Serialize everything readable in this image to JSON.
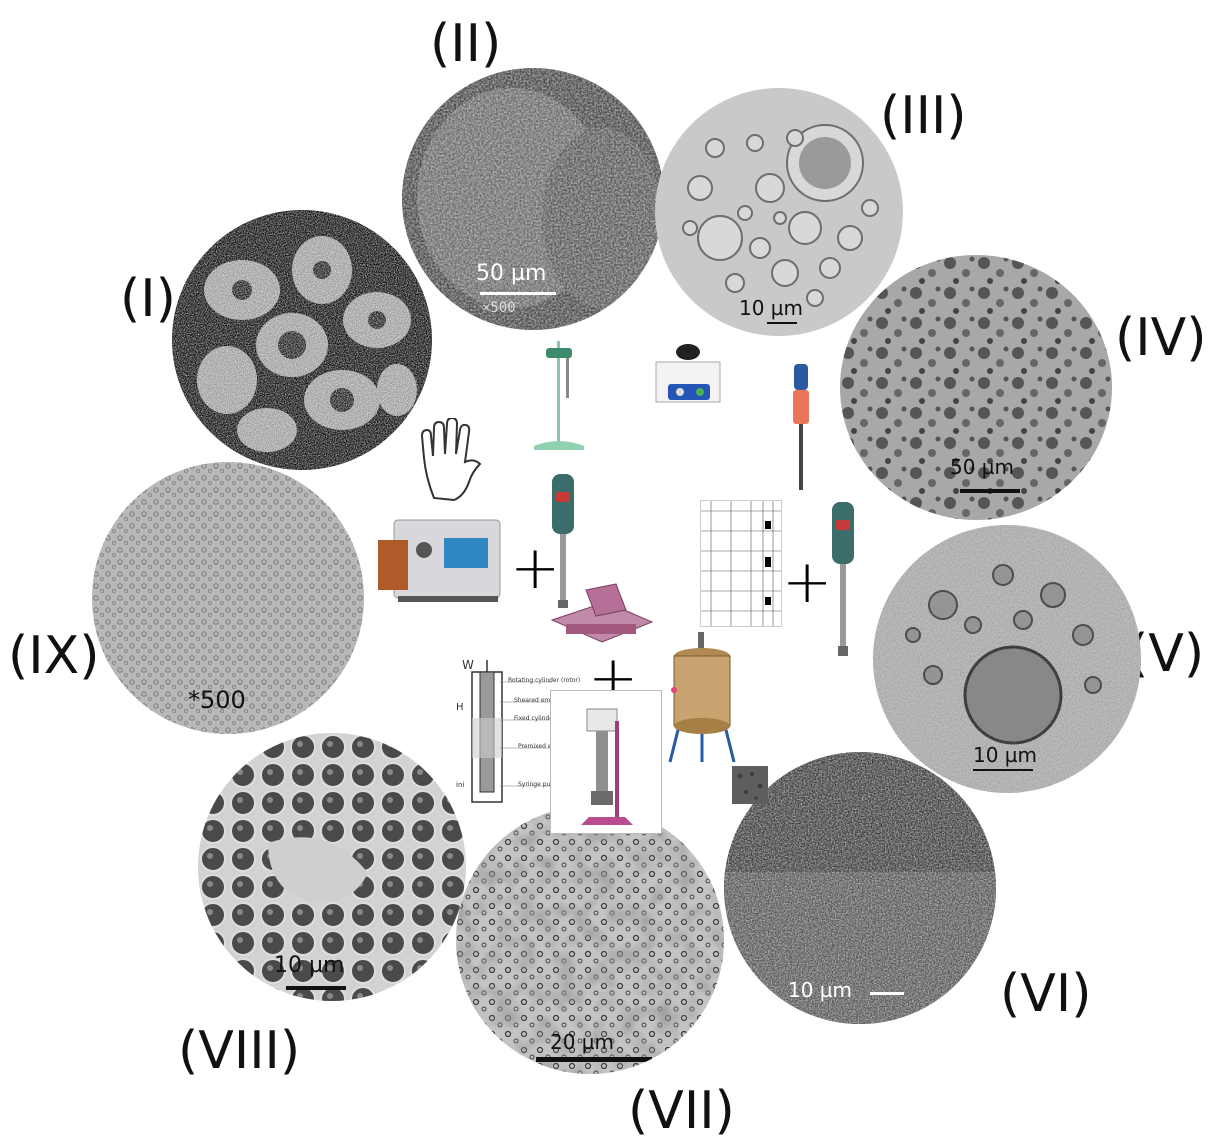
{
  "panels": [
    {
      "id": "I",
      "label": "(I)",
      "scale": ""
    },
    {
      "id": "II",
      "label": "(II)",
      "scale": "50 µm",
      "magnification": "×500"
    },
    {
      "id": "III",
      "label": "(III)",
      "scale": "10 µm"
    },
    {
      "id": "IV",
      "label": "(IV)",
      "scale": "50 µm"
    },
    {
      "id": "V",
      "label": "(V)",
      "scale": "10 µm"
    },
    {
      "id": "VI",
      "label": "(VI)",
      "scale": "10 µm"
    },
    {
      "id": "VII",
      "label": "(VII)",
      "scale": "20 µm"
    },
    {
      "id": "VIII",
      "label": "(VIII)",
      "scale": "10 µm"
    },
    {
      "id": "IX",
      "label": "(IX)",
      "scale": "*500"
    }
  ],
  "plus_sign": "+",
  "couette_labels": {
    "w": "W",
    "h": "H",
    "ini": "ini",
    "rotor": "Rotating cylinder (rotor)",
    "sheared": "Sheared emulsion",
    "stator": "Fixed cylinder (stator)",
    "premixed": "Premixed emulsion",
    "syringe": "Syringe pump"
  },
  "colors": {
    "label": "#111111",
    "micro_dark": "#1a1a1a",
    "micro_gray": "#8a8a8a",
    "homogenizer_teal": "#3b6e6a",
    "hand_outline": "#333333",
    "mixer_pink": "#a3587e"
  }
}
